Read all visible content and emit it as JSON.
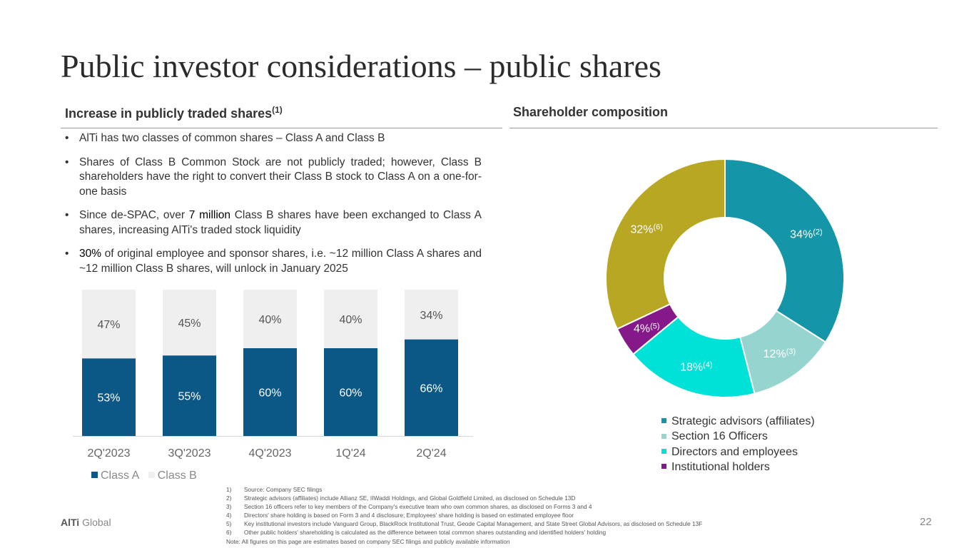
{
  "title": "Public investor considerations – public shares",
  "left_section": {
    "heading": "Increase in publicly traded shares",
    "heading_sup": "(1)",
    "bullets": [
      {
        "pre": "AlTi has two classes of common shares – Class A and Class B",
        "bold": "",
        "post": ""
      },
      {
        "pre": "Shares of Class B Common Stock are not publicly traded; however, Class B shareholders have the right to convert their Class B stock to Class A on a one-for-one basis",
        "bold": "",
        "post": ""
      },
      {
        "pre": "Since de-SPAC, over ",
        "bold": "7 million",
        "post": " Class B shares have been exchanged to Class A shares, increasing AlTi's traded stock liquidity"
      },
      {
        "pre": "",
        "bold": "30%",
        "post": " of original employee and sponsor shares, i.e. ~12 million Class A shares and ~12 million Class B shares, will unlock in January 2025"
      }
    ]
  },
  "right_section": {
    "heading": "Shareholder composition"
  },
  "chart_data": [
    {
      "type": "bar",
      "stacked": true,
      "categories": [
        "2Q'2023",
        "3Q'2023",
        "4Q'2023",
        "1Q'24",
        "2Q'24"
      ],
      "series": [
        {
          "name": "Class A",
          "values": [
            53,
            55,
            60,
            60,
            66
          ],
          "labels": [
            "53%",
            "55%",
            "60%",
            "60%",
            "66%"
          ],
          "color": "#0b5786"
        },
        {
          "name": "Class B",
          "values": [
            47,
            45,
            40,
            40,
            34
          ],
          "labels": [
            "47%",
            "45%",
            "40%",
            "40%",
            "34%"
          ],
          "color": "#efefef"
        }
      ],
      "ylim": [
        0,
        100
      ],
      "legend": "bottom-left"
    },
    {
      "type": "pie",
      "donut": true,
      "slices": [
        {
          "name": "Strategic advisors (affiliates)",
          "value": 34,
          "label": "34%",
          "note": "(2)",
          "color": "#1496a8",
          "in_legend": true
        },
        {
          "name": "Section 16 Officers",
          "value": 12,
          "label": "12%",
          "note": "(3)",
          "color": "#96d5cf",
          "in_legend": true
        },
        {
          "name": "Directors and employees",
          "value": 18,
          "label": "18%",
          "note": "(4)",
          "color": "#00e1d8",
          "in_legend": true
        },
        {
          "name": "Institutional holders",
          "value": 4,
          "label": "4%",
          "note": "(5)",
          "color": "#86198a",
          "in_legend": true
        },
        {
          "name": "Other public holders",
          "value": 32,
          "label": "32%",
          "note": "(6)",
          "color": "#b8a722",
          "in_legend": false
        }
      ],
      "legend": "bottom"
    }
  ],
  "footnotes": [
    {
      "num": "1)",
      "text": "Source: Company SEC filings"
    },
    {
      "num": "2)",
      "text": "Strategic advisors (affiliates) include Allianz SE, IIWaddi Holdings, and Global Goldfield Limited, as disclosed on Schedule 13D"
    },
    {
      "num": "3)",
      "text": "Section 16 officers refer to key members of the Company's executive team who own common shares, as disclosed on Forms 3 and 4"
    },
    {
      "num": "4)",
      "text": "Directors' share holding is based on Form 3 and 4 disclosure; Employees' share holding is based on estimated employee floor"
    },
    {
      "num": "5)",
      "text": "Key institutional investors include Vanguard Group, BlackRock Institutional Trust, Geode Capital Management, and State Street Global Advisors, as disclosed on Schedule 13F"
    },
    {
      "num": "6)",
      "text": "Other public holders' shareholding is calculated as the difference between total common shares outstanding and identified holders' holding"
    }
  ],
  "note": "Note: All figures on this page are estimates based on company SEC filings and publicly available information",
  "brand": {
    "bold": "AlTi",
    "rest": " Global"
  },
  "page_number": "22"
}
